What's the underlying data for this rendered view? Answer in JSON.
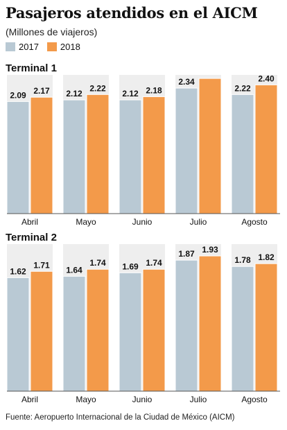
{
  "header": {
    "title": "Pasajeros atendidos en el AICM",
    "subtitle": "(Millones de viajeros)"
  },
  "legend": [
    {
      "label": "2017",
      "color": "#b9c9d4"
    },
    {
      "label": "2018",
      "color": "#f39a4a"
    }
  ],
  "chart_data": [
    {
      "type": "bar",
      "title": "Terminal 1",
      "categories": [
        "Abril",
        "Mayo",
        "Junio",
        "Julio",
        "Agosto"
      ],
      "series": [
        {
          "name": "2017",
          "values": [
            2.09,
            2.12,
            2.12,
            2.34,
            2.22
          ]
        },
        {
          "name": "2018",
          "values": [
            2.17,
            2.22,
            2.18,
            2.52,
            2.4
          ]
        }
      ],
      "ylim": [
        0,
        2.56
      ],
      "grid": false,
      "legend_position": "top-left",
      "data_labels": true
    },
    {
      "type": "bar",
      "title": "Terminal 2",
      "categories": [
        "Abril",
        "Mayo",
        "Junio",
        "Julio",
        "Agosto"
      ],
      "series": [
        {
          "name": "2017",
          "values": [
            1.62,
            1.64,
            1.69,
            1.87,
            1.78
          ]
        },
        {
          "name": "2018",
          "values": [
            1.71,
            1.74,
            1.74,
            1.93,
            1.82
          ]
        }
      ],
      "ylim": [
        0,
        1.96
      ],
      "grid": false,
      "legend_position": "top-left",
      "data_labels": true
    }
  ],
  "footer": {
    "source": "Fuente: Aeropuerto Internacional de la Ciudad de México (AICM)"
  }
}
